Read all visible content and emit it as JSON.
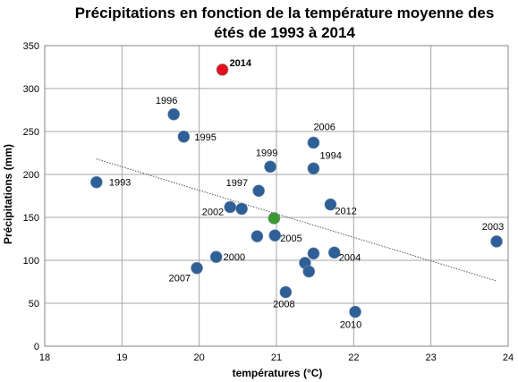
{
  "chart_data": {
    "type": "scatter",
    "title_lines": [
      "Précipitations en fonction de la température moyenne des",
      "étés de 1993 à 2014"
    ],
    "xlabel": "températures (°C)",
    "ylabel": "Précipitations (mm)",
    "xlim": [
      18,
      24
    ],
    "ylim": [
      0,
      350
    ],
    "x_ticks": [
      "18",
      "19",
      "20",
      "21",
      "22",
      "23",
      "24"
    ],
    "y_ticks": [
      "0",
      "50",
      "100",
      "150",
      "200",
      "250",
      "300",
      "350"
    ],
    "grid": true,
    "legend": "none",
    "colors": {
      "default_point": "#2e5f97",
      "highlight_2014": "#e3101c",
      "highlight_mean": "#3a9a2e",
      "trendline": "#555555",
      "grid": "#a6a6a6"
    },
    "points": [
      {
        "label": "1993",
        "x": 18.67,
        "y": 191
      },
      {
        "label": "1994",
        "x": 21.48,
        "y": 207
      },
      {
        "label": "1995",
        "x": 19.8,
        "y": 244
      },
      {
        "label": "1996",
        "x": 19.67,
        "y": 270
      },
      {
        "label": "1997",
        "x": 20.77,
        "y": 181
      },
      {
        "label": "1999",
        "x": 20.92,
        "y": 209
      },
      {
        "label": "2000",
        "x": 20.22,
        "y": 104
      },
      {
        "label": "2002",
        "x": 20.4,
        "y": 162
      },
      {
        "label": "2003",
        "x": 23.85,
        "y": 122
      },
      {
        "label": "2004",
        "x": 21.75,
        "y": 109
      },
      {
        "label": "2005",
        "x": 20.98,
        "y": 129
      },
      {
        "label": "2006",
        "x": 21.48,
        "y": 237
      },
      {
        "label": "2007",
        "x": 19.97,
        "y": 91
      },
      {
        "label": "2008",
        "x": 21.12,
        "y": 63
      },
      {
        "label": "2010",
        "x": 22.02,
        "y": 40
      },
      {
        "label": "2012",
        "x": 21.7,
        "y": 165
      },
      {
        "label": "2014",
        "x": 20.3,
        "y": 322,
        "highlight": "2014"
      },
      {
        "label": "",
        "x": 20.55,
        "y": 160
      },
      {
        "label": "",
        "x": 20.75,
        "y": 128
      },
      {
        "label": "",
        "x": 21.37,
        "y": 97
      },
      {
        "label": "",
        "x": 21.42,
        "y": 87
      },
      {
        "label": "",
        "x": 21.48,
        "y": 108
      },
      {
        "label": "",
        "x": 20.97,
        "y": 149,
        "highlight": "mean"
      }
    ],
    "trendline": {
      "x1": 18.67,
      "y1": 218,
      "x2": 23.85,
      "y2": 76
    }
  }
}
